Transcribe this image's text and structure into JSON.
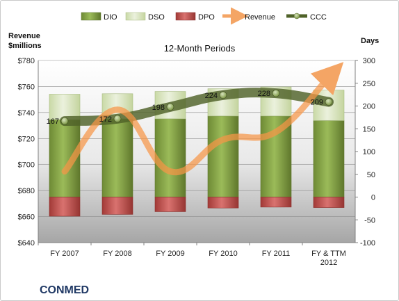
{
  "company": "CONMED",
  "chart_data": {
    "type": "bar",
    "subtitle": "12-Month Periods",
    "categories": [
      "FY 2007",
      "FY 2008",
      "FY 2009",
      "FY 2010",
      "FY 2011",
      "FY & TTM 2012"
    ],
    "series": [
      {
        "name": "DIO",
        "axis": "right",
        "stack": "positive",
        "values": [
          170,
          172,
          172,
          178,
          178,
          168
        ],
        "color": "#76923c"
      },
      {
        "name": "DSO",
        "axis": "right",
        "stack": "positive",
        "values": [
          56,
          55,
          60,
          60,
          64,
          67
        ],
        "color": "#d7e4bd"
      },
      {
        "name": "DPO",
        "axis": "right",
        "stack": "negative",
        "values": [
          -42,
          -38,
          -32,
          -24,
          -22,
          -23
        ],
        "color": "#c0504d"
      },
      {
        "name": "Revenue",
        "axis": "left",
        "type": "line",
        "values": [
          694.7,
          742.2,
          694.7,
          719.2,
          725.1,
          767.1
        ],
        "color": "#f79646"
      },
      {
        "name": "CCC",
        "axis": "right",
        "type": "line",
        "values": [
          167,
          172,
          198,
          224,
          228,
          209
        ],
        "labels": [
          "167",
          "172",
          "198",
          "224",
          "228",
          "209"
        ],
        "color": "#4f6228"
      }
    ],
    "y_left": {
      "label": "Revenue\n$millions",
      "min": 640,
      "max": 780,
      "ticks": [
        "$640",
        "$660",
        "$680",
        "$700",
        "$720",
        "$740",
        "$760",
        "$780"
      ]
    },
    "y_right": {
      "label": "Days",
      "min": -100,
      "max": 300,
      "ticks": [
        "-100",
        "-50",
        "0",
        "50",
        "100",
        "150",
        "200",
        "250",
        "300"
      ]
    },
    "legend": {
      "placement": "top",
      "items": [
        "DIO",
        "DSO",
        "DPO",
        "Revenue",
        "CCC"
      ]
    },
    "grid": true
  }
}
